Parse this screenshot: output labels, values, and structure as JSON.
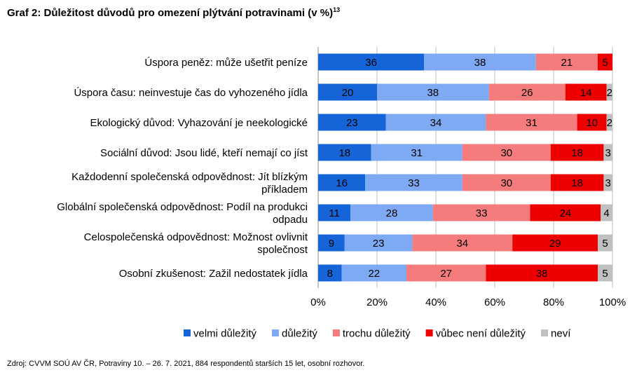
{
  "title": "Graf 2: Důležitost důvodů pro omezení plýtvání potravinami (v %)",
  "title_footnote": "13",
  "source": "Zdroj: CVVM SOÚ AV ČR, Potraviny 10. – 26. 7. 2021, 884 respondentů starších 15 let, osobní rozhovor.",
  "chart_data": {
    "type": "bar",
    "orientation": "horizontal",
    "stacked": "percent",
    "categories": [
      [
        "Úspora peněz: může ušetřit peníze"
      ],
      [
        "Úspora času: neinvestuje čas do vyhozeného jídla"
      ],
      [
        "Ekologický důvod: Vyhazování je neekologické"
      ],
      [
        "Sociální důvod: Jsou lidé, kteří nemají co jíst"
      ],
      [
        "Každodenní společenská odpovědnost: Jít blízkým",
        "příkladem"
      ],
      [
        "Globální společenská odpovědnost: Podíl na produkci",
        "odpadu"
      ],
      [
        "Celospolečenská odpovědnost: Možnost ovlivnit",
        "společnost"
      ],
      [
        "Osobní zkušenost: Zažil nedostatek jídla"
      ]
    ],
    "series": [
      {
        "name": "velmi důležitý",
        "color": "#1565D8",
        "values": [
          36,
          20,
          23,
          18,
          16,
          11,
          9,
          8
        ]
      },
      {
        "name": "důležitý",
        "color": "#7DAAF2",
        "values": [
          38,
          38,
          34,
          31,
          33,
          28,
          23,
          22
        ]
      },
      {
        "name": "trochu důležitý",
        "color": "#F47C7C",
        "values": [
          21,
          26,
          31,
          30,
          30,
          33,
          34,
          27
        ]
      },
      {
        "name": "vůbec není důležitý",
        "color": "#EE0000",
        "values": [
          5,
          14,
          10,
          18,
          18,
          24,
          29,
          38
        ]
      },
      {
        "name": "neví",
        "color": "#C0C0C0",
        "values": [
          0,
          2,
          2,
          3,
          3,
          4,
          5,
          5
        ]
      }
    ],
    "xticks": [
      "0%",
      "20%",
      "40%",
      "60%",
      "80%",
      "100%"
    ],
    "xlim": [
      0,
      100
    ],
    "grid": true,
    "legend": "bottom"
  }
}
